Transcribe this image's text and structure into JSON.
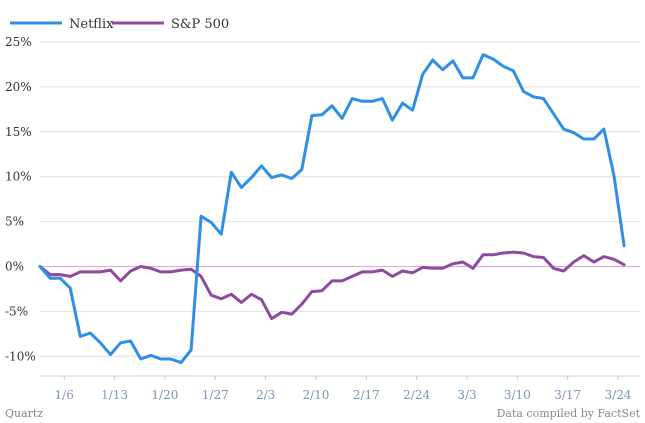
{
  "chart_data": {
    "type": "line",
    "title": "",
    "xlabel": "",
    "ylabel": "",
    "ylim": [
      -12,
      26
    ],
    "y_ticks": [
      25,
      20,
      15,
      10,
      5,
      0,
      -5,
      -10
    ],
    "y_tick_labels": [
      "25%",
      "20%",
      "15%",
      "10%",
      "5%",
      "0%",
      "-5%",
      "-10%"
    ],
    "x_ticks": [
      3,
      8,
      13,
      18,
      23,
      28,
      33,
      38,
      43,
      48,
      53,
      58
    ],
    "x_tick_labels": [
      "1/6",
      "1/13",
      "1/20",
      "1/27",
      "2/3",
      "2/10",
      "2/17",
      "2/24",
      "3/3",
      "3/10",
      "3/17",
      "3/24"
    ],
    "grid": true,
    "legend_position": "top-left",
    "series": [
      {
        "name": "Netflix",
        "color": "#2f8fe6",
        "values": [
          0,
          -1.3,
          -1.3,
          -2.4,
          -7.8,
          -7.4,
          -8.5,
          -9.8,
          -8.5,
          -8.3,
          -10.3,
          -9.9,
          -10.3,
          -10.3,
          -10.7,
          -9.3,
          5.6,
          4.9,
          3.6,
          10.5,
          8.8,
          9.9,
          11.2,
          9.9,
          10.2,
          9.8,
          10.8,
          16.8,
          16.9,
          17.9,
          16.5,
          18.7,
          18.4,
          18.4,
          18.7,
          16.3,
          18.2,
          17.4,
          21.4,
          23.0,
          21.9,
          22.9,
          21.0,
          21.0,
          23.6,
          23.1,
          22.3,
          21.8,
          19.5,
          18.9,
          18.7,
          17.0,
          15.3,
          14.9,
          14.2,
          14.2,
          15.3,
          10.1,
          2.3
        ]
      },
      {
        "name": "S&P 500",
        "color": "#8e4b9e",
        "values": [
          0,
          -0.9,
          -0.9,
          -1.1,
          -0.6,
          -0.6,
          -0.6,
          -0.4,
          -1.6,
          -0.5,
          0,
          -0.2,
          -0.6,
          -0.6,
          -0.4,
          -0.3,
          -1.1,
          -3.2,
          -3.6,
          -3.1,
          -4.0,
          -3.1,
          -3.7,
          -5.8,
          -5.1,
          -5.3,
          -4.2,
          -2.8,
          -2.7,
          -1.6,
          -1.6,
          -1.1,
          -0.6,
          -0.6,
          -0.4,
          -1.1,
          -0.5,
          -0.7,
          -0.1,
          -0.2,
          -0.2,
          0.3,
          0.5,
          -0.2,
          1.3,
          1.3,
          1.5,
          1.6,
          1.5,
          1.1,
          1.0,
          -0.2,
          -0.5,
          0.5,
          1.2,
          0.5,
          1.1,
          0.8,
          0.2
        ]
      }
    ]
  },
  "legend": {
    "netflix_label": "Netflix",
    "sp500_label": "S&P 500"
  },
  "footer": {
    "left": "Quartz",
    "right": "Data compiled by FactSet"
  }
}
